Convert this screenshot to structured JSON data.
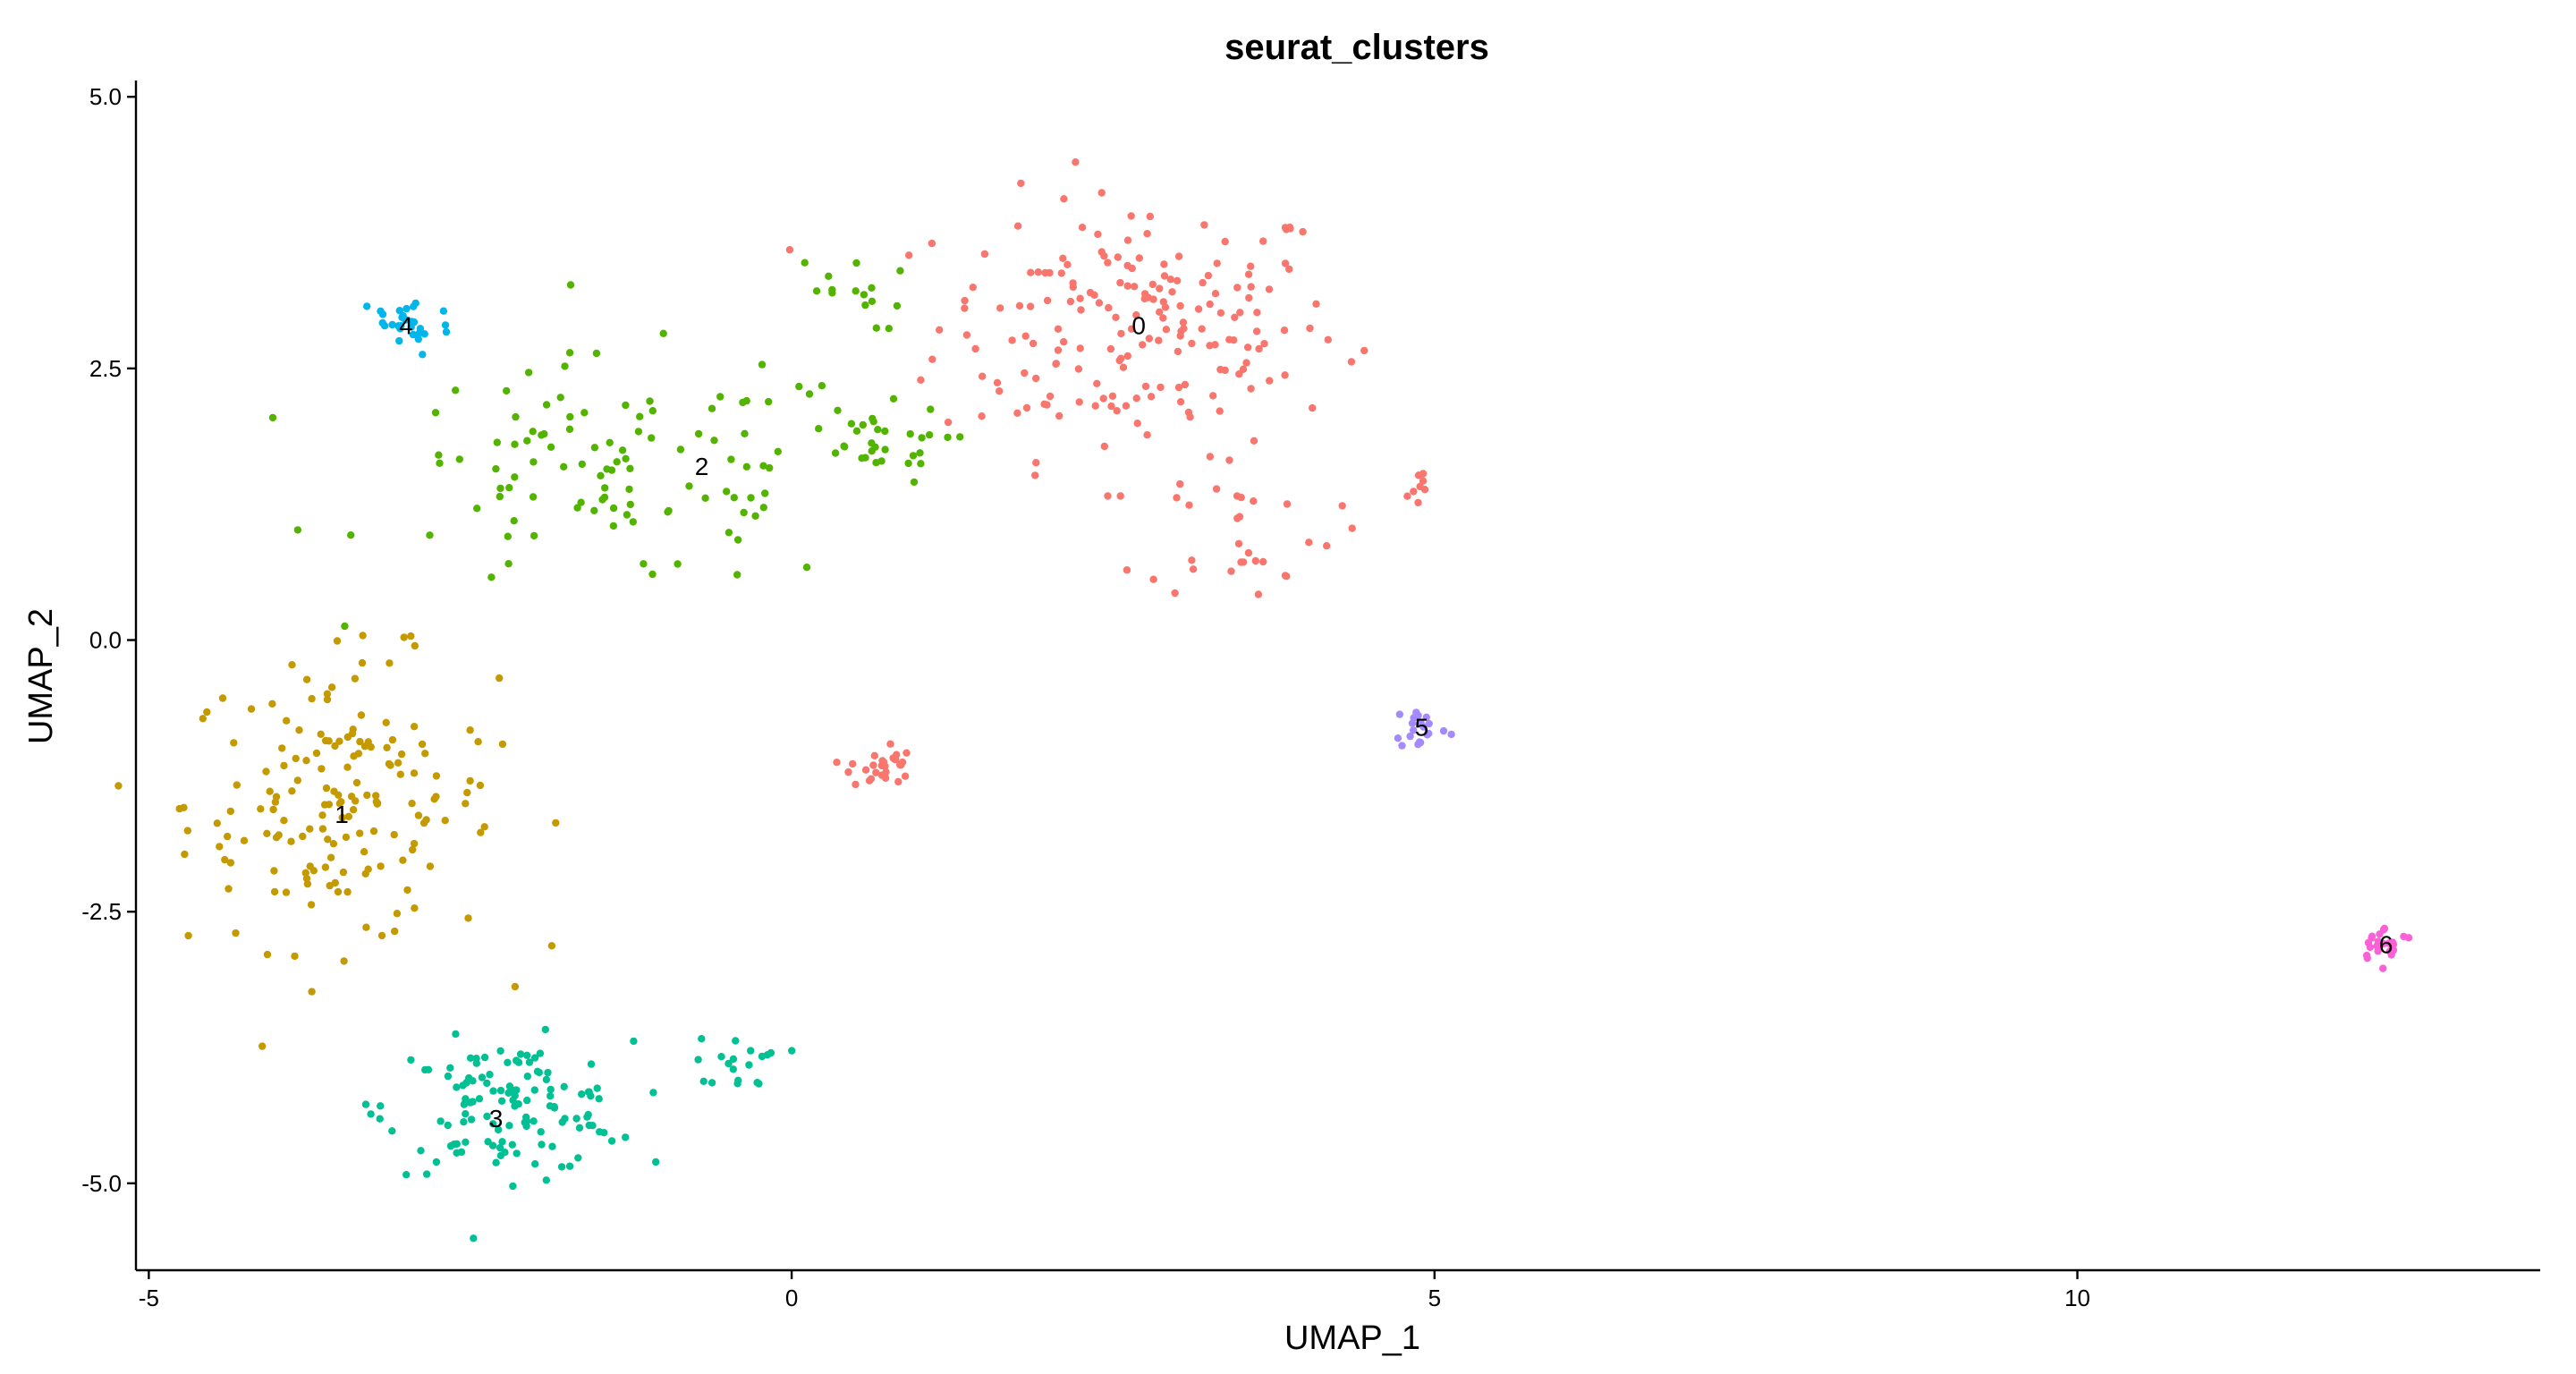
{
  "chart_data": {
    "type": "scatter",
    "title": "seurat_clusters",
    "xlabel": "UMAP_1",
    "ylabel": "UMAP_2",
    "xlim": [
      -5.1,
      13.6
    ],
    "ylim": [
      -5.8,
      5.15
    ],
    "xticks": [
      -5,
      0,
      5,
      10
    ],
    "yticks": [
      5.0,
      2.5,
      0.0,
      -2.5,
      -5.0
    ],
    "xtick_labels": [
      "-5",
      "0",
      "5",
      "10"
    ],
    "ytick_labels": [
      "5.0",
      "2.5",
      "0.0",
      "-2.5",
      "-5.0"
    ],
    "grid": false,
    "legend": "none",
    "series": [
      {
        "name": "0",
        "color": "#F8766D",
        "center": [
          2.7,
          2.9
        ],
        "spread": [
          1.3,
          1.0
        ],
        "count": 190,
        "label_pos": [
          2.7,
          2.9
        ]
      },
      {
        "name": "1",
        "color": "#C49A00",
        "center": [
          -3.5,
          -1.5
        ],
        "spread": [
          1.0,
          1.1
        ],
        "count": 170,
        "label_pos": [
          -3.5,
          -1.6
        ]
      },
      {
        "name": "2",
        "color": "#53B400",
        "center": [
          -1.3,
          1.5
        ],
        "spread": [
          1.6,
          0.9
        ],
        "count": 110,
        "label_pos": [
          -0.7,
          1.6
        ]
      },
      {
        "name": "3",
        "color": "#00C094",
        "center": [
          -2.2,
          -4.3
        ],
        "spread": [
          0.8,
          0.5
        ],
        "count": 130,
        "label_pos": [
          -2.3,
          -4.4
        ]
      },
      {
        "name": "4",
        "color": "#00B6EB",
        "center": [
          -3.0,
          2.9
        ],
        "spread": [
          0.3,
          0.25
        ],
        "count": 30,
        "label_pos": [
          -3.0,
          2.9
        ]
      },
      {
        "name": "5",
        "color": "#A58AFF",
        "center": [
          4.9,
          -0.8
        ],
        "spread": [
          0.18,
          0.18
        ],
        "count": 22,
        "label_pos": [
          4.9,
          -0.8
        ]
      },
      {
        "name": "6",
        "color": "#FB61D7",
        "center": [
          12.4,
          -2.8
        ],
        "spread": [
          0.2,
          0.13
        ],
        "count": 25,
        "label_pos": [
          12.4,
          -2.8
        ]
      }
    ],
    "extra_groups": [
      {
        "series": "0",
        "center": [
          0.7,
          -1.15
        ],
        "spread": [
          0.2,
          0.18
        ],
        "count": 28
      },
      {
        "series": "0",
        "center": [
          3.5,
          1.0
        ],
        "spread": [
          0.6,
          0.5
        ],
        "count": 30
      },
      {
        "series": "0",
        "center": [
          4.85,
          1.4
        ],
        "spread": [
          0.1,
          0.2
        ],
        "count": 8
      },
      {
        "series": "2",
        "center": [
          0.6,
          1.8
        ],
        "spread": [
          0.5,
          0.3
        ],
        "count": 30
      },
      {
        "series": "2",
        "center": [
          0.4,
          3.2
        ],
        "spread": [
          0.4,
          0.3
        ],
        "count": 15
      },
      {
        "series": "3",
        "center": [
          -0.4,
          -3.9
        ],
        "spread": [
          0.3,
          0.2
        ],
        "count": 18
      }
    ]
  }
}
